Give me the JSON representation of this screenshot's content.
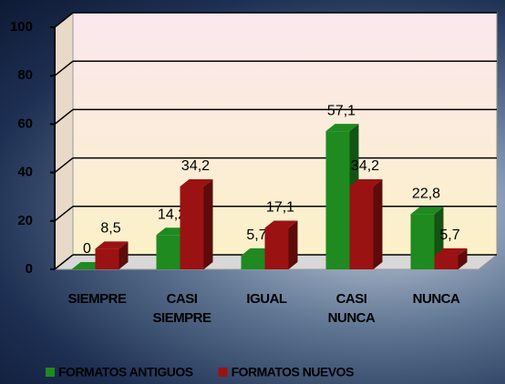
{
  "chart_data": {
    "type": "bar3d",
    "categories": [
      "SIEMPRE",
      "CASI SIEMPRE",
      "IGUAL",
      "CASI NUNCA",
      "NUNCA"
    ],
    "series": [
      {
        "name": "FORMATOS ANTIGUOS",
        "color": "#1f8a1f",
        "values": [
          0,
          14.2,
          5.7,
          57.1,
          22.8
        ],
        "value_labels": [
          "0",
          "14,2",
          "5,7",
          "57,1",
          "22,8"
        ]
      },
      {
        "name": "FORMATOS NUEVOS",
        "color": "#9b1212",
        "values": [
          8.5,
          34.2,
          17.1,
          34.2,
          5.7
        ],
        "value_labels": [
          "8,5",
          "34,2",
          "17,1",
          "34,2",
          "5,7"
        ]
      }
    ],
    "ylim": [
      0,
      100
    ],
    "yticks": [
      0,
      20,
      40,
      60,
      80,
      100
    ],
    "grid": true
  }
}
